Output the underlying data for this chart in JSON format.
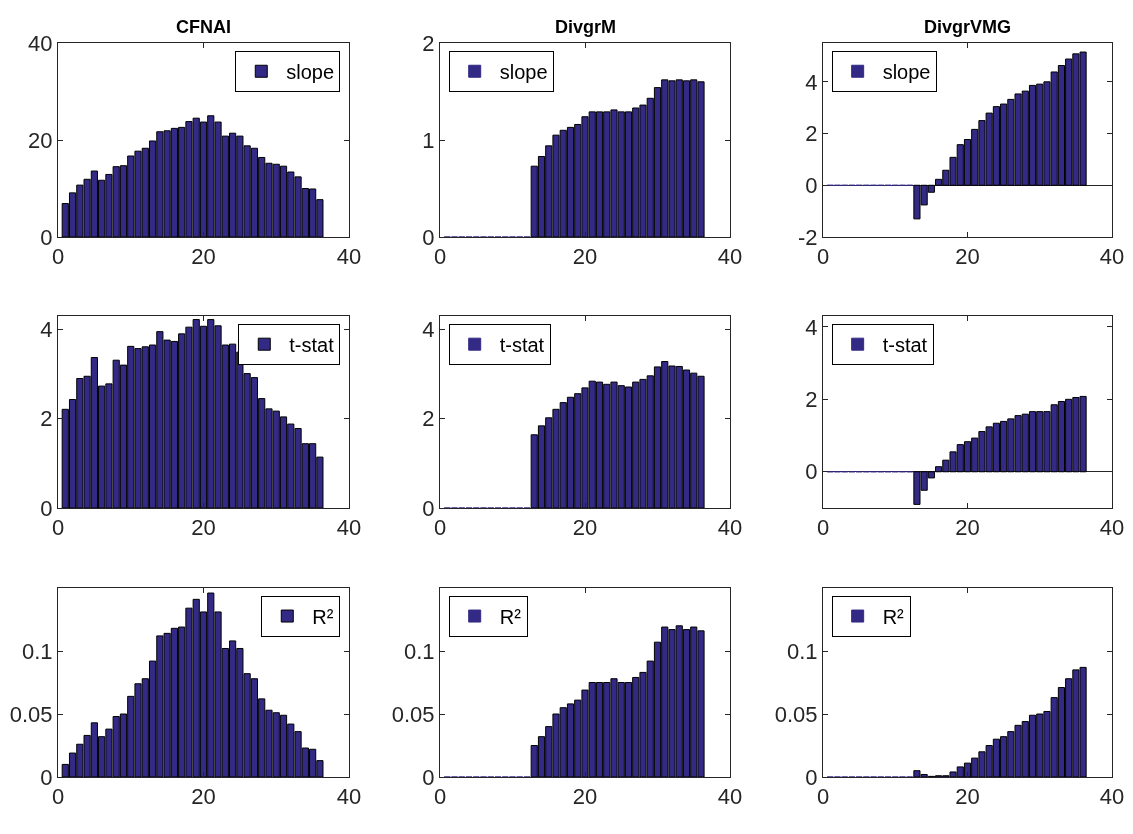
{
  "chart_data": [
    {
      "type": "bar",
      "title": "CFNAI",
      "x": [
        1,
        2,
        3,
        4,
        5,
        6,
        7,
        8,
        9,
        10,
        11,
        12,
        13,
        14,
        15,
        16,
        17,
        18,
        19,
        20,
        21,
        22,
        23,
        24,
        25,
        26,
        27,
        28,
        29,
        30,
        31,
        32,
        33,
        34,
        35,
        36
      ],
      "xlim": [
        0,
        40
      ],
      "xticks": [
        0,
        20,
        40
      ],
      "ylim": [
        0,
        40
      ],
      "yticks": [
        0,
        20,
        40
      ],
      "legend": "top right",
      "series": [
        {
          "name": "slope",
          "color": "#332a85",
          "values": [
            6.9,
            9.1,
            10.7,
            11.9,
            13.6,
            11.7,
            12.9,
            14.5,
            14.7,
            16.7,
            17.7,
            18.3,
            19.8,
            21.7,
            21.9,
            22.4,
            22.6,
            23.8,
            24.5,
            23.7,
            25.0,
            23.7,
            20.8,
            21.4,
            20.8,
            18.8,
            18.3,
            16.4,
            15.2,
            15.0,
            14.6,
            13.4,
            12.4,
            10.0,
            9.9,
            7.7
          ]
        }
      ]
    },
    {
      "type": "bar",
      "title": "DivgrM",
      "x": [
        1,
        2,
        3,
        4,
        5,
        6,
        7,
        8,
        9,
        10,
        11,
        12,
        13,
        14,
        15,
        16,
        17,
        18,
        19,
        20,
        21,
        22,
        23,
        24,
        25,
        26,
        27,
        28,
        29,
        30,
        31,
        32,
        33,
        34,
        35,
        36
      ],
      "xlim": [
        0,
        40
      ],
      "xticks": [
        0,
        20,
        40
      ],
      "ylim": [
        0,
        2
      ],
      "yticks": [
        0,
        1,
        2
      ],
      "legend": "top left",
      "series": [
        {
          "name": "slope",
          "color": "#332a85",
          "values": [
            0,
            0,
            0,
            0,
            0,
            0,
            0,
            0,
            0,
            0,
            0,
            0,
            0.73,
            0.83,
            0.94,
            1.05,
            1.1,
            1.13,
            1.16,
            1.24,
            1.29,
            1.29,
            1.29,
            1.31,
            1.29,
            1.29,
            1.33,
            1.36,
            1.43,
            1.54,
            1.62,
            1.61,
            1.62,
            1.61,
            1.62,
            1.6
          ]
        }
      ]
    },
    {
      "type": "bar",
      "title": "DivgrVMG",
      "x": [
        1,
        2,
        3,
        4,
        5,
        6,
        7,
        8,
        9,
        10,
        11,
        12,
        13,
        14,
        15,
        16,
        17,
        18,
        19,
        20,
        21,
        22,
        23,
        24,
        25,
        26,
        27,
        28,
        29,
        30,
        31,
        32,
        33,
        34,
        35,
        36
      ],
      "xlim": [
        0,
        40
      ],
      "xticks": [
        0,
        20,
        40
      ],
      "ylim": [
        -2,
        5.5
      ],
      "yticks": [
        -2,
        0,
        2,
        4
      ],
      "legend": "top left",
      "series": [
        {
          "name": "slope",
          "color": "#332a85",
          "values": [
            0,
            0,
            0,
            0,
            0,
            0,
            0,
            0,
            0,
            0,
            0,
            0,
            -1.3,
            -0.76,
            -0.27,
            0.23,
            0.58,
            1.08,
            1.57,
            1.77,
            2.16,
            2.5,
            2.79,
            3.04,
            3.14,
            3.32,
            3.53,
            3.64,
            3.86,
            3.91,
            4.0,
            4.38,
            4.63,
            4.88,
            5.08,
            5.15
          ]
        }
      ]
    },
    {
      "type": "bar",
      "x": [
        1,
        2,
        3,
        4,
        5,
        6,
        7,
        8,
        9,
        10,
        11,
        12,
        13,
        14,
        15,
        16,
        17,
        18,
        19,
        20,
        21,
        22,
        23,
        24,
        25,
        26,
        27,
        28,
        29,
        30,
        31,
        32,
        33,
        34,
        35,
        36
      ],
      "xlim": [
        0,
        40
      ],
      "xticks": [
        0,
        20,
        40
      ],
      "ylim": [
        0,
        4.3
      ],
      "yticks": [
        0,
        2,
        4
      ],
      "legend": "top right",
      "series": [
        {
          "name": "t-stat",
          "color": "#332a85",
          "values": [
            2.21,
            2.43,
            2.9,
            2.95,
            3.37,
            2.73,
            2.78,
            3.31,
            3.2,
            3.62,
            3.57,
            3.61,
            3.65,
            3.95,
            3.76,
            3.73,
            3.9,
            4.05,
            4.22,
            4.07,
            4.22,
            4.08,
            3.65,
            3.67,
            3.49,
            3.01,
            2.92,
            2.45,
            2.22,
            2.17,
            2.04,
            1.88,
            1.78,
            1.44,
            1.44,
            1.14
          ]
        }
      ]
    },
    {
      "type": "bar",
      "x": [
        1,
        2,
        3,
        4,
        5,
        6,
        7,
        8,
        9,
        10,
        11,
        12,
        13,
        14,
        15,
        16,
        17,
        18,
        19,
        20,
        21,
        22,
        23,
        24,
        25,
        26,
        27,
        28,
        29,
        30,
        31,
        32,
        33,
        34,
        35,
        36
      ],
      "xlim": [
        0,
        40
      ],
      "xticks": [
        0,
        20,
        40
      ],
      "ylim": [
        0,
        4.3
      ],
      "yticks": [
        0,
        2,
        4
      ],
      "legend": "top left",
      "series": [
        {
          "name": "t-stat",
          "color": "#332a85",
          "values": [
            0,
            0,
            0,
            0,
            0,
            0,
            0,
            0,
            0,
            0,
            0,
            0,
            1.64,
            1.84,
            2.02,
            2.21,
            2.36,
            2.48,
            2.56,
            2.69,
            2.84,
            2.82,
            2.77,
            2.82,
            2.74,
            2.71,
            2.82,
            2.88,
            2.96,
            3.16,
            3.28,
            3.18,
            3.17,
            3.09,
            3.02,
            2.95
          ]
        }
      ]
    },
    {
      "type": "bar",
      "x": [
        1,
        2,
        3,
        4,
        5,
        6,
        7,
        8,
        9,
        10,
        11,
        12,
        13,
        14,
        15,
        16,
        17,
        18,
        19,
        20,
        21,
        22,
        23,
        24,
        25,
        26,
        27,
        28,
        29,
        30,
        31,
        32,
        33,
        34,
        35,
        36
      ],
      "xlim": [
        0,
        40
      ],
      "xticks": [
        0,
        20,
        40
      ],
      "ylim": [
        -1,
        4.3
      ],
      "yticks": [
        0,
        2,
        4
      ],
      "legend": "top left",
      "series": [
        {
          "name": "t-stat",
          "color": "#332a85",
          "values": [
            0,
            0,
            0,
            0,
            0,
            0,
            0,
            0,
            0,
            0,
            0,
            0,
            -0.9,
            -0.51,
            -0.17,
            0.14,
            0.32,
            0.55,
            0.75,
            0.83,
            0.93,
            1.11,
            1.24,
            1.34,
            1.39,
            1.46,
            1.55,
            1.59,
            1.66,
            1.66,
            1.66,
            1.85,
            1.94,
            2.0,
            2.05,
            2.08
          ]
        }
      ]
    },
    {
      "type": "bar",
      "x": [
        1,
        2,
        3,
        4,
        5,
        6,
        7,
        8,
        9,
        10,
        11,
        12,
        13,
        14,
        15,
        16,
        17,
        18,
        19,
        20,
        21,
        22,
        23,
        24,
        25,
        26,
        27,
        28,
        29,
        30,
        31,
        32,
        33,
        34,
        35,
        36
      ],
      "xlim": [
        0,
        40
      ],
      "xticks": [
        0,
        20,
        40
      ],
      "ylim": [
        0,
        0.15
      ],
      "yticks": [
        0,
        0.05,
        0.1
      ],
      "legend": "top right",
      "series": [
        {
          "name": "R²",
          "color": "#332a85",
          "values": [
            0.01,
            0.019,
            0.026,
            0.033,
            0.043,
            0.032,
            0.038,
            0.048,
            0.05,
            0.064,
            0.074,
            0.078,
            0.092,
            0.112,
            0.114,
            0.118,
            0.119,
            0.134,
            0.141,
            0.131,
            0.146,
            0.131,
            0.102,
            0.108,
            0.102,
            0.082,
            0.078,
            0.062,
            0.053,
            0.051,
            0.049,
            0.042,
            0.036,
            0.023,
            0.022,
            0.013
          ]
        }
      ]
    },
    {
      "type": "bar",
      "x": [
        1,
        2,
        3,
        4,
        5,
        6,
        7,
        8,
        9,
        10,
        11,
        12,
        13,
        14,
        15,
        16,
        17,
        18,
        19,
        20,
        21,
        22,
        23,
        24,
        25,
        26,
        27,
        28,
        29,
        30,
        31,
        32,
        33,
        34,
        35,
        36
      ],
      "xlim": [
        0,
        40
      ],
      "xticks": [
        0,
        20,
        40
      ],
      "ylim": [
        0,
        0.15
      ],
      "yticks": [
        0,
        0.05,
        0.1
      ],
      "legend": "top left",
      "series": [
        {
          "name": "R²",
          "color": "#332a85",
          "values": [
            0,
            0,
            0,
            0,
            0,
            0,
            0,
            0,
            0,
            0,
            0,
            0,
            0.025,
            0.032,
            0.04,
            0.05,
            0.055,
            0.058,
            0.061,
            0.069,
            0.075,
            0.075,
            0.075,
            0.078,
            0.075,
            0.075,
            0.079,
            0.083,
            0.092,
            0.107,
            0.119,
            0.117,
            0.12,
            0.117,
            0.119,
            0.116
          ]
        }
      ]
    },
    {
      "type": "bar",
      "x": [
        1,
        2,
        3,
        4,
        5,
        6,
        7,
        8,
        9,
        10,
        11,
        12,
        13,
        14,
        15,
        16,
        17,
        18,
        19,
        20,
        21,
        22,
        23,
        24,
        25,
        26,
        27,
        28,
        29,
        30,
        31,
        32,
        33,
        34,
        35,
        36
      ],
      "xlim": [
        0,
        40
      ],
      "xticks": [
        0,
        20,
        40
      ],
      "ylim": [
        0,
        0.15
      ],
      "yticks": [
        0,
        0.05,
        0.1
      ],
      "legend": "top left",
      "series": [
        {
          "name": "R²",
          "color": "#332a85",
          "values": [
            0,
            0,
            0,
            0,
            0,
            0,
            0,
            0,
            0,
            0,
            0,
            0,
            0.005,
            0.002,
            0.0005,
            0.001,
            0.001,
            0.004,
            0.008,
            0.011,
            0.015,
            0.02,
            0.025,
            0.03,
            0.032,
            0.036,
            0.041,
            0.044,
            0.049,
            0.05,
            0.052,
            0.063,
            0.071,
            0.078,
            0.085,
            0.087
          ]
        }
      ]
    }
  ]
}
